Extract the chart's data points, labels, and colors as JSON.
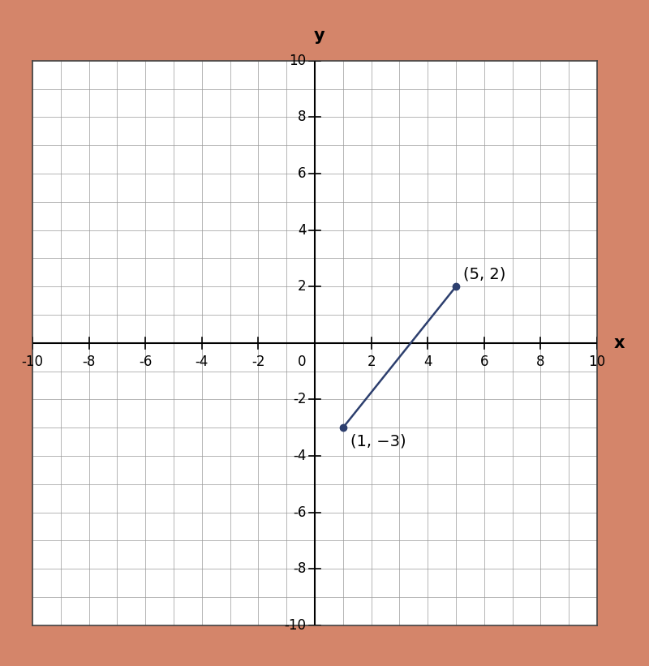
{
  "background_color": "#d4856a",
  "plot_bg_color": "#ffffff",
  "grid_color": "#999999",
  "border_color": "#444444",
  "point1": [
    5,
    2
  ],
  "point2": [
    1,
    -3
  ],
  "point1_label": "(5, 2)",
  "point2_label": "(1, −3)",
  "line_color": "#2d3f6e",
  "point_color": "#2d3f6e",
  "point_size": 6,
  "xlim": [
    -10,
    10
  ],
  "ylim": [
    -10,
    10
  ],
  "xticks": [
    -10,
    -8,
    -6,
    -4,
    -2,
    2,
    4,
    6,
    8,
    10
  ],
  "yticks": [
    -10,
    -8,
    -6,
    -4,
    -2,
    2,
    4,
    6,
    8,
    10
  ],
  "xlabel": "x",
  "ylabel": "y",
  "axis_label_fontsize": 15,
  "tick_fontsize": 12,
  "annotation_fontsize": 14,
  "figsize": [
    8.0,
    8.21
  ],
  "origin_label": "0"
}
